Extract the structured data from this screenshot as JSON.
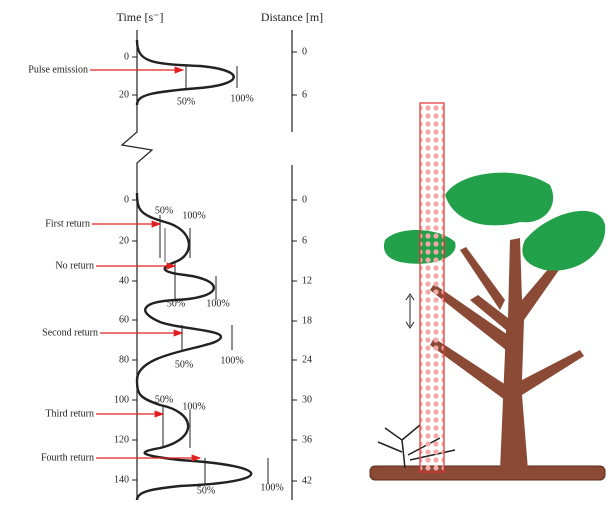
{
  "header": {
    "time_axis": "Time [s⁻]",
    "distance_axis": "Distance [m]"
  },
  "top_panel": {
    "time_ticks": [
      "0",
      "20"
    ],
    "distance_ticks": [
      "0",
      "6"
    ],
    "events": [
      {
        "label": "Pulse emission",
        "half": "50%",
        "peak": "100%"
      }
    ]
  },
  "bottom_panel": {
    "time_ticks": [
      "0",
      "20",
      "40",
      "60",
      "80",
      "100",
      "120",
      "140"
    ],
    "distance_ticks": [
      "0",
      "6",
      "12",
      "18",
      "24",
      "30",
      "36",
      "42"
    ],
    "events": [
      {
        "label": "First return",
        "half": "50%",
        "peak": "100%"
      },
      {
        "label": "No return",
        "half": "50%",
        "peak": "100%"
      },
      {
        "label": "Second return",
        "half": "50%",
        "peak": "100%"
      },
      {
        "label": "Third return",
        "half": "50%",
        "peak": "100%"
      },
      {
        "label": "Fourth return",
        "half": "50%",
        "peak": "100%"
      }
    ]
  }
}
